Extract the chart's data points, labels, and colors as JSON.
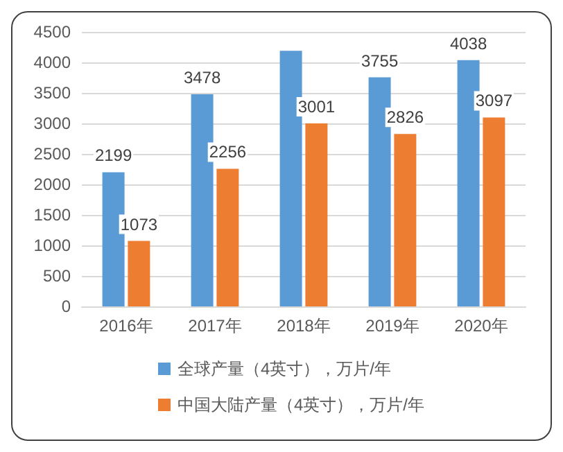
{
  "chart_data": {
    "type": "bar",
    "categories": [
      "2016年",
      "2017年",
      "2018年",
      "2019年",
      "2020年"
    ],
    "series": [
      {
        "name": "全球产量（4英寸），万片/年",
        "color": "#5b9bd5",
        "values": [
          2199,
          3478,
          4190,
          3755,
          4038
        ],
        "value_labels": [
          "2199",
          "3478",
          null,
          "3755",
          "4038"
        ]
      },
      {
        "name": "中国大陆产量（4英寸），万片/年",
        "color": "#ed7d31",
        "values": [
          1073,
          2256,
          3001,
          2826,
          3097
        ],
        "value_labels": [
          "1073",
          "2256",
          "3001",
          "2826",
          "3097"
        ]
      }
    ],
    "ylim": [
      0,
      4500
    ],
    "yticks": [
      0,
      500,
      1000,
      1500,
      2000,
      2500,
      3000,
      3500,
      4000,
      4500
    ],
    "grid": "y",
    "legend": "bottom"
  }
}
